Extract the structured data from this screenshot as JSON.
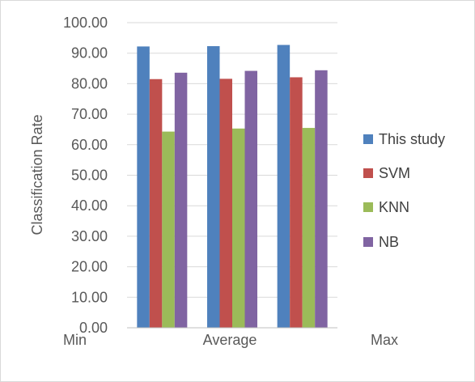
{
  "chart_data": {
    "type": "bar",
    "title": "",
    "xlabel": "",
    "ylabel": "Classification Rate",
    "categories": [
      "Min",
      "Average",
      "Max"
    ],
    "series": [
      {
        "name": "This study",
        "color": "#4f81bd",
        "values": [
          92.2,
          92.3,
          92.7
        ]
      },
      {
        "name": "SVM",
        "color": "#c0504d",
        "values": [
          81.5,
          81.6,
          82.1
        ]
      },
      {
        "name": "KNN",
        "color": "#9bbb59",
        "values": [
          64.3,
          65.3,
          65.5
        ]
      },
      {
        "name": "NB",
        "color": "#8064a2",
        "values": [
          83.6,
          84.2,
          84.4
        ]
      }
    ],
    "ylim": [
      0,
      100
    ],
    "yticks": [
      "0.00",
      "10.00",
      "20.00",
      "30.00",
      "40.00",
      "50.00",
      "60.00",
      "70.00",
      "80.00",
      "90.00",
      "100.00"
    ],
    "grid": true,
    "legend_position": "right",
    "gridline_color": "#d9d9d9",
    "axis_color": "#bfbfbf"
  }
}
